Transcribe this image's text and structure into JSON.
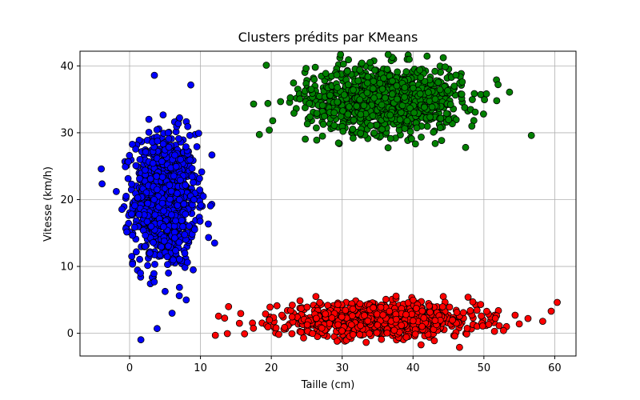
{
  "chart_data": {
    "type": "scatter",
    "title": "Clusters prédits par KMeans",
    "xlabel": "Taille (cm)",
    "ylabel": "Vitesse (km/h)",
    "xlim": [
      -7,
      63
    ],
    "ylim": [
      -3.4,
      42.2
    ],
    "xticks": [
      0,
      10,
      20,
      30,
      40,
      50,
      60
    ],
    "yticks": [
      0,
      10,
      20,
      30,
      40
    ],
    "grid": true,
    "legend": "none",
    "series": [
      {
        "color": "#0000ff",
        "generator": {
          "x_mean": 5,
          "x_sd": 2.2,
          "y_mean": 20,
          "y_sd": 5,
          "count": 1000
        },
        "points": [
          [
            -4,
            24.6
          ],
          [
            6,
            3
          ],
          [
            12,
            13.5
          ],
          [
            3.5,
            38.6
          ],
          [
            -0.5,
            20.5
          ],
          [
            0.3,
            11.5
          ],
          [
            8.5,
            29.6
          ]
        ]
      },
      {
        "color": "#008000",
        "generator": {
          "x_mean": 36,
          "x_sd": 5.5,
          "y_mean": 35,
          "y_sd": 2.5,
          "count": 1000
        },
        "points": [
          [
            19.3,
            40.1
          ],
          [
            17.5,
            34.3
          ],
          [
            52,
            37.2
          ],
          [
            56.7,
            29.6
          ],
          [
            48.3,
            31
          ],
          [
            26.2,
            39.8
          ],
          [
            20.2,
            31.8
          ]
        ]
      },
      {
        "color": "#ff0000",
        "generator": {
          "x_mean": 35,
          "x_sd": 7,
          "y_mean": 2,
          "y_sd": 1.2,
          "count": 1000
        },
        "points": [
          [
            15.5,
            1.5
          ],
          [
            12.1,
            -0.3
          ],
          [
            59.5,
            3.3
          ],
          [
            58.3,
            1.8
          ],
          [
            55,
            1.4
          ],
          [
            26.3,
            5.5
          ],
          [
            51.5,
            0.3
          ]
        ]
      }
    ]
  }
}
